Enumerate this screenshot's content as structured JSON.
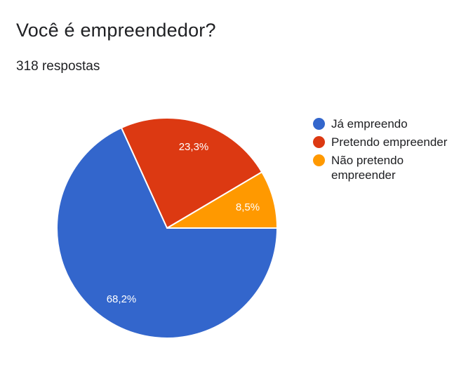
{
  "header": {
    "title": "Você é empreendedor?",
    "subtitle": "318 respostas"
  },
  "legend": {
    "items": [
      {
        "label": "Já empreendo",
        "color": "#3366cc"
      },
      {
        "label": "Pretendo empreender",
        "color": "#dc3912"
      },
      {
        "label": "Não pretendo empreender",
        "color": "#ff9900"
      }
    ]
  },
  "slice_labels": {
    "ja_empreendo": "68,2%",
    "pretendo": "23,3%",
    "nao_pretendo": "8,5%"
  },
  "chart_data": {
    "type": "pie",
    "title": "Você é empreendedor?",
    "subtitle": "318 respostas",
    "categories": [
      "Já empreendo",
      "Pretendo empreender",
      "Não pretendo empreender"
    ],
    "values": [
      68.2,
      23.3,
      8.5
    ],
    "value_labels": [
      "68,2%",
      "23,3%",
      "8,5%"
    ],
    "colors": [
      "#3366cc",
      "#dc3912",
      "#ff9900"
    ],
    "legend_position": "right"
  }
}
